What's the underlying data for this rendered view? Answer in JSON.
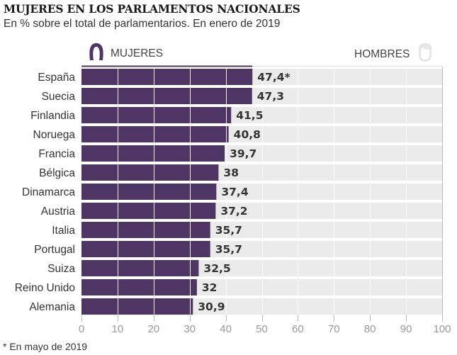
{
  "header": {
    "title": "MUJERES EN LOS PARLAMENTOS NACIONALES",
    "subtitle": "En % sobre el total de parlamentarios. En enero de 2019"
  },
  "legend": {
    "women_label": "MUJERES",
    "women_icon": "woman-head-icon",
    "men_label": "HOMBRES",
    "men_icon": "man-head-icon"
  },
  "footnote": "* En mayo de 2019",
  "colors": {
    "women": "#4e3564",
    "men": "#ebebeb",
    "gridline": "#ffffff",
    "axis": "#bbbbbb",
    "men_icon": "#e6e6e6"
  },
  "chart_data": {
    "type": "bar",
    "orientation": "horizontal",
    "stacked": true,
    "title": "MUJERES EN LOS PARLAMENTOS NACIONALES",
    "subtitle": "En % sobre el total de parlamentarios. En enero de 2019",
    "xlabel": "",
    "ylabel": "",
    "xlim": [
      0,
      100
    ],
    "xticks": [
      0,
      10,
      20,
      30,
      40,
      50,
      60,
      70,
      80,
      90,
      100
    ],
    "grid": true,
    "legend_position": "top",
    "categories": [
      "España",
      "Suecia",
      "Finlandia",
      "Noruega",
      "Francia",
      "Bélgica",
      "Dinamarca",
      "Austria",
      "Italia",
      "Portugal",
      "Suiza",
      "Reino Unido",
      "Alemania"
    ],
    "series": [
      {
        "name": "MUJERES",
        "values": [
          47.4,
          47.3,
          41.5,
          40.8,
          39.7,
          38,
          37.4,
          37.2,
          35.7,
          35.7,
          32.5,
          32,
          30.9
        ]
      },
      {
        "name": "HOMBRES",
        "values": [
          52.6,
          52.7,
          58.5,
          59.2,
          60.3,
          62,
          62.6,
          62.8,
          64.3,
          64.3,
          67.5,
          68,
          69.1
        ]
      }
    ],
    "data_labels": [
      "47,4*",
      "47,3",
      "41,5",
      "40,8",
      "39,7",
      "38",
      "37,4",
      "37,2",
      "35,7",
      "35,7",
      "32,5",
      "32",
      "30,9"
    ],
    "annotations": [
      "* En mayo de 2019"
    ]
  }
}
